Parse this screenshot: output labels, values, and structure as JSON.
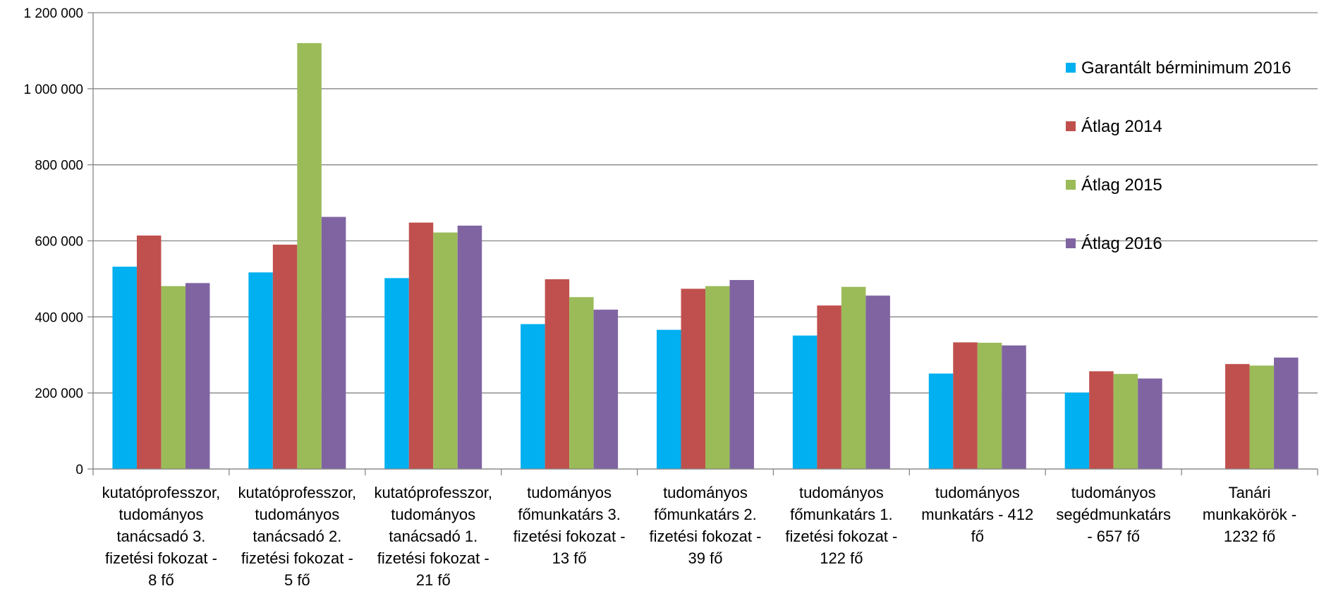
{
  "chart_data": {
    "type": "bar",
    "title": "",
    "xlabel": "",
    "ylabel": "",
    "ylim": [
      0,
      1200000
    ],
    "yticks": [
      0,
      200000,
      400000,
      600000,
      800000,
      1000000,
      1200000
    ],
    "ytick_labels": [
      "0",
      "200 000",
      "400 000",
      "600 000",
      "800 000",
      "1 000 000",
      "1 200 000"
    ],
    "grid": true,
    "legend_position": "right",
    "categories": [
      [
        "kutatóprofesszor,",
        "tudományos",
        "tanácsadó 3.",
        "fizetési fokozat -",
        "8 fő"
      ],
      [
        "kutatóprofesszor,",
        "tudományos",
        "tanácsadó 2.",
        "fizetési fokozat -",
        "5 fő"
      ],
      [
        "kutatóprofesszor,",
        "tudományos",
        "tanácsadó 1.",
        "fizetési fokozat -",
        "21 fő"
      ],
      [
        "tudományos",
        "főmunkatárs 3.",
        "fizetési fokozat -",
        "13 fő"
      ],
      [
        "tudományos",
        "főmunkatárs 2.",
        "fizetési fokozat -",
        "39 fő"
      ],
      [
        "tudományos",
        "főmunkatárs 1.",
        "fizetési fokozat -",
        "122 fő"
      ],
      [
        "tudományos",
        "munkatárs - 412",
        "fő"
      ],
      [
        "tudományos",
        "segédmunkatárs",
        "- 657 fő"
      ],
      [
        "Tanári",
        "munkakörök -",
        "1232 fő"
      ]
    ],
    "series": [
      {
        "name": "Garantált bérminimum 2016",
        "color": "#00B0F0",
        "values": [
          532000,
          517000,
          502000,
          381000,
          366000,
          351000,
          251000,
          201000,
          null
        ]
      },
      {
        "name": "Átlag 2014",
        "color": "#C0504D",
        "values": [
          614000,
          590000,
          648000,
          499000,
          474000,
          430000,
          333000,
          257000,
          276000
        ]
      },
      {
        "name": "Átlag 2015",
        "color": "#9BBB59",
        "values": [
          481000,
          1120000,
          622000,
          452000,
          481000,
          479000,
          332000,
          250000,
          272000
        ]
      },
      {
        "name": "Átlag 2016",
        "color": "#8064A2",
        "values": [
          489000,
          663000,
          640000,
          419000,
          497000,
          456000,
          325000,
          238000,
          293000
        ]
      }
    ]
  }
}
